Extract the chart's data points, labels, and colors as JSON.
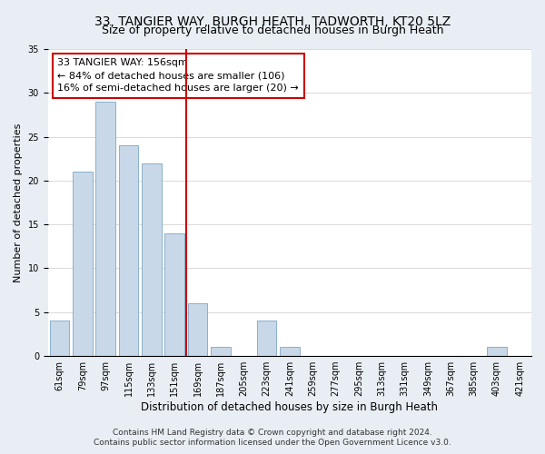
{
  "title": "33, TANGIER WAY, BURGH HEATH, TADWORTH, KT20 5LZ",
  "subtitle": "Size of property relative to detached houses in Burgh Heath",
  "xlabel": "Distribution of detached houses by size in Burgh Heath",
  "ylabel": "Number of detached properties",
  "categories": [
    "61sqm",
    "79sqm",
    "97sqm",
    "115sqm",
    "133sqm",
    "151sqm",
    "169sqm",
    "187sqm",
    "205sqm",
    "223sqm",
    "241sqm",
    "259sqm",
    "277sqm",
    "295sqm",
    "313sqm",
    "331sqm",
    "349sqm",
    "367sqm",
    "385sqm",
    "403sqm",
    "421sqm"
  ],
  "values": [
    4,
    21,
    29,
    24,
    22,
    14,
    6,
    1,
    0,
    4,
    1,
    0,
    0,
    0,
    0,
    0,
    0,
    0,
    0,
    1,
    0
  ],
  "bar_color": "#c8d8e8",
  "bar_edge_color": "#8ab0cc",
  "vline_x": 5.5,
  "vline_color": "#cc0000",
  "ylim": [
    0,
    35
  ],
  "yticks": [
    0,
    5,
    10,
    15,
    20,
    25,
    30,
    35
  ],
  "annotation_line1": "33 TANGIER WAY: 156sqm",
  "annotation_line2": "← 84% of detached houses are smaller (106)",
  "annotation_line3": "16% of semi-detached houses are larger (20) →",
  "footer_line1": "Contains HM Land Registry data © Crown copyright and database right 2024.",
  "footer_line2": "Contains public sector information licensed under the Open Government Licence v3.0.",
  "background_color": "#e8eef4",
  "plot_bg_color": "#ffffff",
  "title_fontsize": 10,
  "subtitle_fontsize": 9,
  "xlabel_fontsize": 8.5,
  "ylabel_fontsize": 8,
  "tick_fontsize": 7,
  "annotation_fontsize": 8,
  "footer_fontsize": 6.5
}
